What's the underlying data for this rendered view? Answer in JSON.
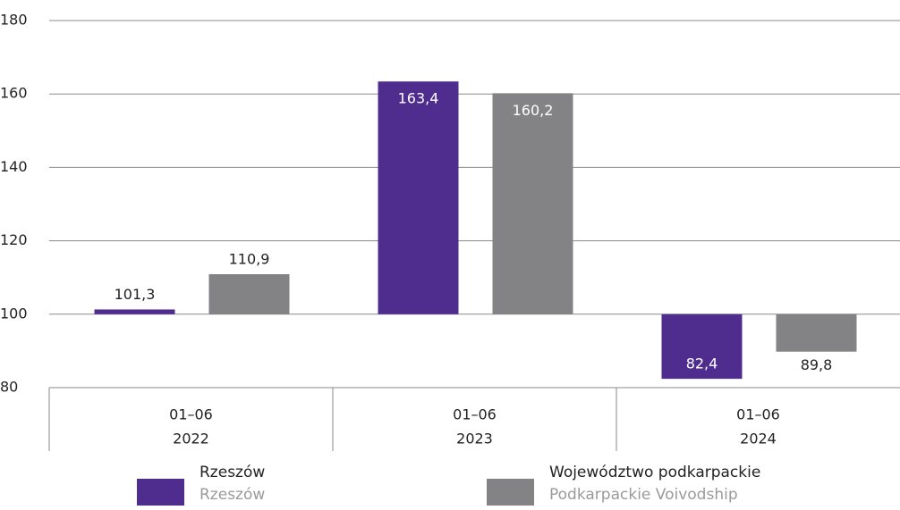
{
  "chart_data": {
    "type": "bar",
    "categories": [
      [
        "01–06",
        "2022"
      ],
      [
        "01–06",
        "2023"
      ],
      [
        "01–06",
        "2024"
      ]
    ],
    "series": [
      {
        "name": "Rzeszów",
        "name_en": "Rzeszów",
        "color": "#4f2d8f",
        "values": [
          101.3,
          163.4,
          82.4
        ],
        "value_labels": [
          "101,3",
          "163,4",
          "82,4"
        ]
      },
      {
        "name": "Województwo podkarpackie",
        "name_en": "Podkarpackie Voivodship",
        "color": "#838386",
        "values": [
          110.9,
          160.2,
          89.8
        ],
        "value_labels": [
          "110,9",
          "160,2",
          "89,8"
        ]
      }
    ],
    "ylim": [
      80,
      180
    ],
    "yticks": [
      80,
      100,
      120,
      140,
      160,
      180
    ],
    "bar_base": 100,
    "grid": true
  }
}
